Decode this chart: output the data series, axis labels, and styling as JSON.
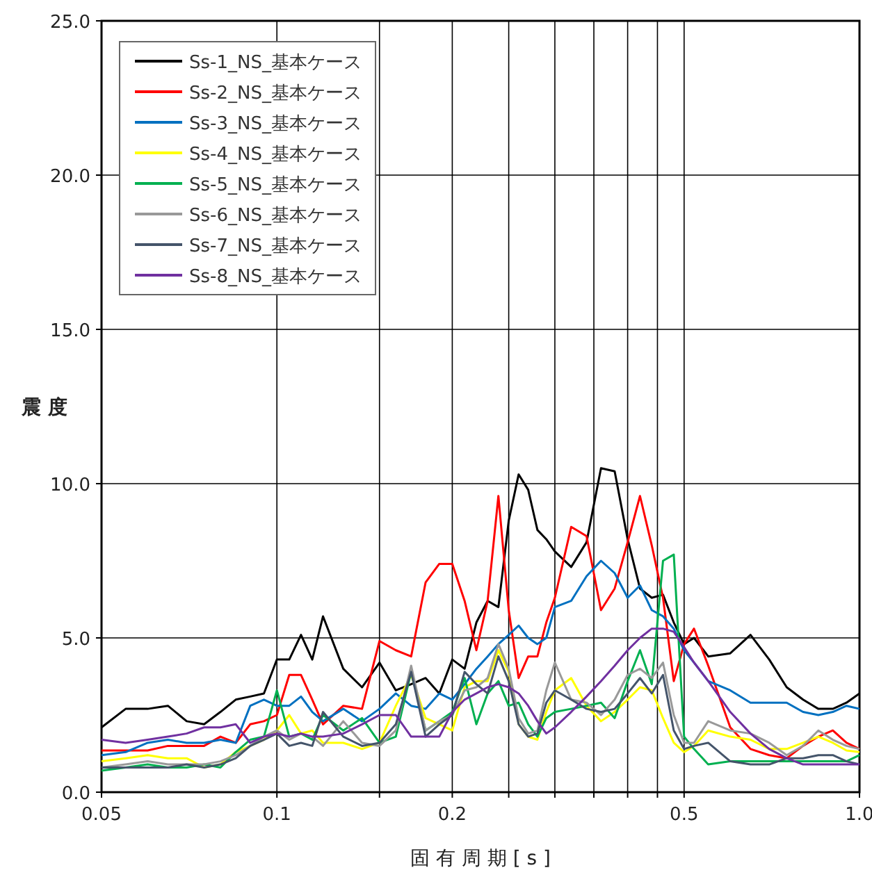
{
  "chart_data": {
    "type": "line",
    "xlabel": "固 有 周 期 [ s ]",
    "ylabel": "震 度",
    "log": "x",
    "x": [
      0.05,
      0.055,
      0.06,
      0.065,
      0.07,
      0.075,
      0.08,
      0.085,
      0.09,
      0.095,
      0.1,
      0.105,
      0.11,
      0.115,
      0.12,
      0.13,
      0.14,
      0.15,
      0.16,
      0.17,
      0.18,
      0.19,
      0.2,
      0.21,
      0.22,
      0.23,
      0.24,
      0.25,
      0.26,
      0.27,
      0.28,
      0.29,
      0.3,
      0.32,
      0.34,
      0.36,
      0.38,
      0.4,
      0.42,
      0.44,
      0.46,
      0.48,
      0.5,
      0.52,
      0.55,
      0.6,
      0.65,
      0.7,
      0.75,
      0.8,
      0.85,
      0.9,
      0.95,
      1.0
    ],
    "xlim": [
      0.05,
      1.0
    ],
    "xticks": [
      0.05,
      0.1,
      {
        "value": 0.15,
        "label": null
      },
      0.2,
      {
        "value": 0.25,
        "label": null
      },
      {
        "value": 0.3,
        "label": null
      },
      {
        "value": 0.35,
        "label": null
      },
      {
        "value": 0.4,
        "label": null
      },
      {
        "value": 0.45,
        "label": null
      },
      0.5,
      {
        "value": 1.0,
        "label": "1.0"
      }
    ],
    "ylim": [
      0,
      25
    ],
    "yticks": [
      {
        "value": 0,
        "label": "0.0"
      },
      {
        "value": 5,
        "label": "5.0"
      },
      {
        "value": 10,
        "label": "10.0"
      },
      {
        "value": 15,
        "label": "15.0"
      },
      {
        "value": 20,
        "label": "20.0"
      },
      {
        "value": 25,
        "label": "25.0"
      }
    ],
    "grid": true,
    "legend": "top left",
    "series": [
      {
        "name": "Ss-1_NS_基本ケース",
        "color": "#000000",
        "values": [
          2.1,
          2.7,
          2.7,
          2.8,
          2.3,
          2.2,
          2.6,
          3.0,
          3.1,
          3.2,
          4.3,
          4.3,
          5.1,
          4.3,
          5.7,
          4.0,
          3.4,
          4.2,
          3.3,
          3.5,
          3.7,
          3.2,
          4.3,
          4.0,
          5.5,
          6.2,
          6.0,
          8.8,
          10.3,
          9.8,
          8.5,
          8.2,
          7.8,
          7.3,
          8.1,
          10.5,
          10.4,
          8.2,
          6.6,
          6.3,
          6.4,
          5.5,
          4.8,
          5.0,
          4.4,
          4.5,
          5.1,
          4.3,
          3.4,
          3.0,
          2.7,
          2.7,
          2.9,
          3.2
        ]
      },
      {
        "name": "Ss-2_NS_基本ケース",
        "color": "#ff0000",
        "values": [
          1.35,
          1.35,
          1.35,
          1.5,
          1.5,
          1.5,
          1.8,
          1.6,
          2.2,
          2.3,
          2.5,
          3.8,
          3.8,
          3.0,
          2.2,
          2.8,
          2.7,
          4.9,
          4.6,
          4.4,
          6.8,
          7.4,
          7.4,
          6.2,
          4.6,
          6.2,
          9.6,
          5.9,
          3.7,
          4.4,
          4.4,
          5.5,
          6.3,
          8.6,
          8.3,
          5.9,
          6.6,
          8.1,
          9.6,
          8.0,
          6.3,
          3.6,
          4.8,
          5.3,
          4.1,
          2.1,
          1.4,
          1.2,
          1.1,
          1.5,
          1.8,
          2.0,
          1.6,
          1.4
        ]
      },
      {
        "name": "Ss-3_NS_基本ケース",
        "color": "#0070c0",
        "values": [
          1.2,
          1.3,
          1.6,
          1.7,
          1.6,
          1.6,
          1.7,
          1.6,
          2.8,
          3.0,
          2.8,
          2.8,
          3.1,
          2.6,
          2.3,
          2.7,
          2.3,
          2.7,
          3.2,
          2.8,
          2.7,
          3.2,
          3.0,
          3.5,
          4.0,
          4.4,
          4.8,
          5.1,
          5.4,
          5.0,
          4.8,
          5.0,
          6.0,
          6.2,
          7.0,
          7.5,
          7.1,
          6.3,
          6.7,
          5.9,
          5.7,
          5.3,
          4.6,
          4.2,
          3.6,
          3.3,
          2.9,
          2.9,
          2.9,
          2.6,
          2.5,
          2.6,
          2.8,
          2.7
        ]
      },
      {
        "name": "Ss-4_NS_基本ケース",
        "color": "#ffff00",
        "values": [
          1.0,
          1.1,
          1.2,
          1.1,
          1.1,
          0.8,
          0.9,
          1.3,
          1.5,
          1.7,
          2.0,
          2.5,
          1.9,
          2.0,
          1.6,
          1.6,
          1.4,
          1.6,
          2.8,
          3.8,
          2.4,
          2.2,
          2.0,
          3.4,
          3.6,
          3.6,
          4.6,
          3.9,
          2.2,
          1.8,
          1.7,
          2.6,
          3.3,
          3.7,
          2.8,
          2.3,
          2.6,
          3.0,
          3.4,
          3.3,
          2.4,
          1.6,
          1.3,
          1.5,
          2.0,
          1.8,
          1.7,
          1.4,
          1.4,
          1.6,
          1.8,
          1.6,
          1.35,
          1.3
        ]
      },
      {
        "name": "Ss-5_NS_基本ケース",
        "color": "#00b050",
        "values": [
          0.7,
          0.8,
          0.9,
          0.8,
          0.8,
          0.9,
          0.8,
          1.3,
          1.7,
          1.8,
          3.3,
          1.8,
          1.9,
          1.7,
          2.5,
          2.0,
          2.4,
          1.6,
          1.8,
          3.9,
          2.0,
          2.3,
          2.6,
          3.7,
          2.2,
          3.2,
          3.6,
          2.8,
          2.9,
          2.2,
          1.8,
          2.4,
          2.6,
          2.7,
          2.8,
          2.9,
          2.4,
          3.6,
          4.6,
          3.5,
          7.5,
          7.7,
          1.8,
          1.4,
          0.9,
          1.0,
          1.0,
          1.0,
          1.0,
          1.0,
          1.0,
          1.0,
          1.0,
          1.2
        ]
      },
      {
        "name": "Ss-6_NS_基本ケース",
        "color": "#999999",
        "values": [
          0.8,
          0.9,
          1.0,
          0.9,
          0.9,
          0.9,
          1.0,
          1.2,
          1.5,
          1.8,
          2.0,
          1.7,
          1.9,
          1.8,
          1.5,
          2.3,
          1.6,
          1.5,
          2.0,
          4.1,
          2.0,
          2.3,
          2.5,
          3.3,
          3.4,
          3.7,
          4.8,
          4.0,
          2.4,
          1.9,
          2.0,
          3.3,
          4.2,
          3.0,
          2.9,
          2.5,
          3.0,
          3.8,
          4.0,
          3.7,
          4.2,
          2.5,
          1.6,
          1.6,
          2.3,
          2.0,
          1.9,
          1.6,
          1.2,
          1.5,
          2.0,
          1.7,
          1.5,
          1.4
        ]
      },
      {
        "name": "Ss-7_NS_基本ケース",
        "color": "#44546a",
        "values": [
          0.8,
          0.8,
          0.8,
          0.8,
          0.9,
          0.8,
          0.9,
          1.1,
          1.5,
          1.7,
          1.9,
          1.5,
          1.6,
          1.5,
          2.6,
          1.8,
          1.5,
          1.6,
          2.2,
          3.9,
          1.8,
          2.2,
          2.5,
          3.9,
          3.5,
          3.2,
          4.4,
          3.6,
          2.2,
          1.8,
          1.9,
          2.9,
          3.3,
          3.0,
          2.7,
          2.6,
          2.7,
          3.2,
          3.7,
          3.2,
          3.8,
          2.0,
          1.4,
          1.5,
          1.6,
          1.0,
          0.9,
          0.9,
          1.1,
          1.1,
          1.2,
          1.2,
          1.0,
          0.9
        ]
      },
      {
        "name": "Ss-8_NS_基本ケース",
        "color": "#7030a0",
        "values": [
          1.7,
          1.6,
          1.7,
          1.8,
          1.9,
          2.1,
          2.1,
          2.2,
          1.6,
          1.8,
          1.9,
          1.8,
          1.9,
          1.8,
          1.8,
          1.9,
          2.2,
          2.5,
          2.5,
          1.8,
          1.8,
          1.8,
          2.6,
          3.0,
          3.2,
          3.4,
          3.5,
          3.4,
          3.2,
          2.8,
          2.3,
          1.9,
          2.1,
          2.6,
          3.1,
          3.6,
          4.1,
          4.6,
          5.0,
          5.3,
          5.3,
          5.2,
          4.7,
          4.2,
          3.6,
          2.6,
          1.9,
          1.4,
          1.1,
          0.9,
          0.9,
          0.9,
          0.9,
          0.9
        ]
      }
    ]
  }
}
